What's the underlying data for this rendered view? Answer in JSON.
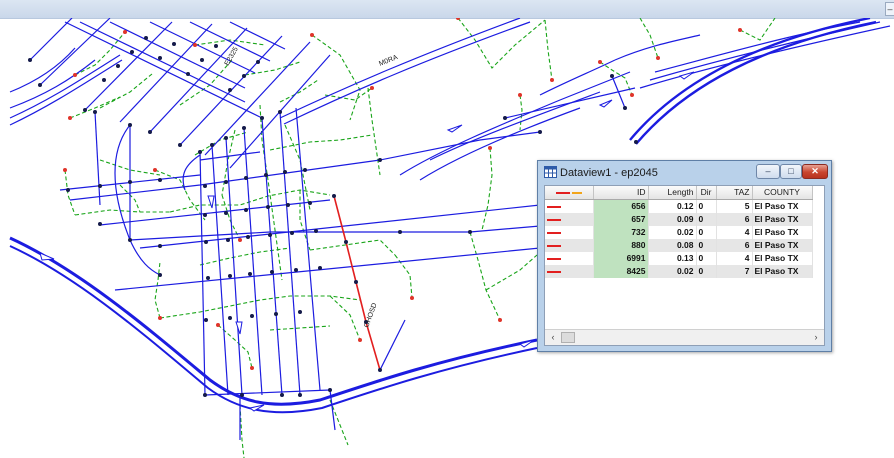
{
  "window": {
    "title": "Dataview1 - ep2045",
    "min_label": "–",
    "max_label": "□",
    "close_label": "✕",
    "top_right_label": "–"
  },
  "map": {
    "road_labels": [
      "M0RA",
      "E2325",
      "GHOSD"
    ],
    "colors": {
      "road": "#1c1ce0",
      "connector": "#1aa51a",
      "selected": "#e21f1f",
      "node": "#141a4a",
      "centroid": "#e0342a"
    }
  },
  "table": {
    "columns": [
      "",
      "ID",
      "Length",
      "Dir",
      "TAZ",
      "COUNTY"
    ],
    "legend": {
      "line_color": "#e21f1f",
      "accent_color": "#f2a51a"
    },
    "rows": [
      {
        "id": "656",
        "length": "0.12",
        "dir": "0",
        "taz": "5",
        "county": "El Paso TX"
      },
      {
        "id": "657",
        "length": "0.09",
        "dir": "0",
        "taz": "6",
        "county": "El Paso TX"
      },
      {
        "id": "732",
        "length": "0.02",
        "dir": "0",
        "taz": "4",
        "county": "El Paso TX"
      },
      {
        "id": "880",
        "length": "0.08",
        "dir": "0",
        "taz": "6",
        "county": "El Paso TX"
      },
      {
        "id": "6991",
        "length": "0.13",
        "dir": "0",
        "taz": "4",
        "county": "El Paso TX"
      },
      {
        "id": "8425",
        "length": "0.02",
        "dir": "0",
        "taz": "7",
        "county": "El Paso TX"
      }
    ]
  },
  "scrollbar": {
    "left_arrow": "‹",
    "right_arrow": "›"
  }
}
